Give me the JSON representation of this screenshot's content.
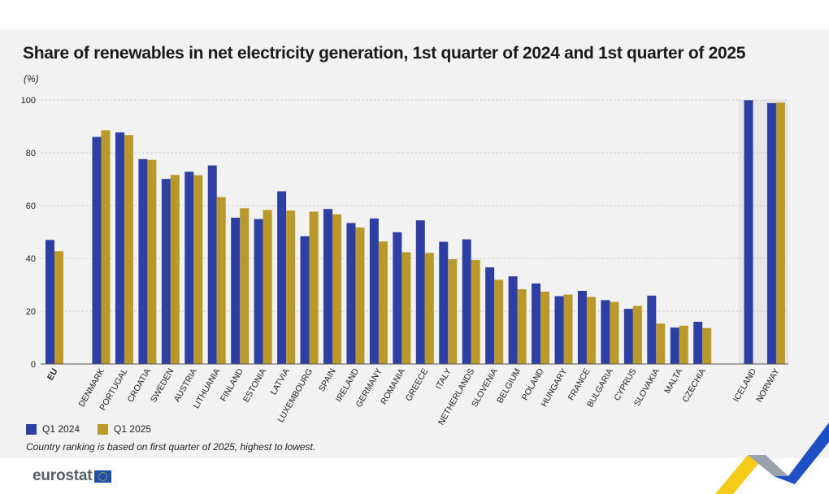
{
  "header": {
    "title": "Share of renewables in net electricity generation, 1st quarter of 2024 and 1st quarter of 2025",
    "unit": "(%)"
  },
  "legend": {
    "items": [
      {
        "label": "Q1 2024",
        "color": "#2e3fa3"
      },
      {
        "label": "Q1 2025",
        "color": "#b9982c"
      }
    ]
  },
  "footnote": "Country ranking is based on first quarter of 2025, highest to lowest.",
  "logo": {
    "text": "eurostat"
  },
  "chart_data": {
    "type": "bar",
    "title": "Share of renewables in net electricity generation, 1st quarter of 2024 and 1st quarter of 2025",
    "ylabel": "(%)",
    "xlabel": "",
    "ylim": [
      0,
      100
    ],
    "yticks": [
      0,
      20,
      40,
      60,
      80,
      100
    ],
    "grid": true,
    "legend_position": "bottom-left",
    "groups": [
      {
        "categories": [
          "EU"
        ]
      },
      {
        "categories": [
          "DENMARK",
          "PORTUGAL",
          "CROATIA",
          "SWEDEN",
          "AUSTRIA",
          "LITHUANIA",
          "FINLAND",
          "ESTONIA",
          "LATVIA",
          "LUXEMBOURG",
          "SPAIN",
          "IRELAND",
          "GERMANY",
          "ROMANIA",
          "GREECE",
          "ITALY",
          "NETHERLANDS",
          "SLOVENIA",
          "BELGIUM",
          "POLAND",
          "HUNGARY",
          "FRANCE",
          "BULGARIA",
          "CYPRUS",
          "SLOVAKIA",
          "MALTA",
          "CZECHIA"
        ]
      },
      {
        "categories": [
          "ICELAND",
          "NORWAY"
        ]
      }
    ],
    "categories": [
      "EU",
      "DENMARK",
      "PORTUGAL",
      "CROATIA",
      "SWEDEN",
      "AUSTRIA",
      "LITHUANIA",
      "FINLAND",
      "ESTONIA",
      "LATVIA",
      "LUXEMBOURG",
      "SPAIN",
      "IRELAND",
      "GERMANY",
      "ROMANIA",
      "GREECE",
      "ITALY",
      "NETHERLANDS",
      "SLOVENIA",
      "BELGIUM",
      "POLAND",
      "HUNGARY",
      "FRANCE",
      "BULGARIA",
      "CYPRUS",
      "SLOVAKIA",
      "MALTA",
      "CZECHIA",
      "ICELAND",
      "NORWAY"
    ],
    "series": [
      {
        "name": "Q1 2024",
        "color": "#2e3fa3",
        "values": [
          47.0,
          86.0,
          87.7,
          77.6,
          70.1,
          72.8,
          75.2,
          55.4,
          54.9,
          65.4,
          48.4,
          58.7,
          53.4,
          55.1,
          49.9,
          54.4,
          46.3,
          47.2,
          36.6,
          33.2,
          30.5,
          25.7,
          27.7,
          24.2,
          20.9,
          25.9,
          13.8,
          16.0,
          99.9,
          98.8
        ]
      },
      {
        "name": "Q1 2025",
        "color": "#b9982c",
        "values": [
          42.7,
          88.5,
          86.7,
          77.3,
          71.6,
          71.5,
          63.2,
          59.0,
          58.3,
          58.1,
          57.7,
          56.7,
          51.7,
          46.4,
          42.3,
          42.1,
          39.7,
          39.4,
          31.9,
          28.3,
          27.4,
          26.3,
          25.4,
          23.5,
          22.0,
          15.3,
          14.5,
          13.6,
          0,
          99.0
        ]
      }
    ]
  }
}
